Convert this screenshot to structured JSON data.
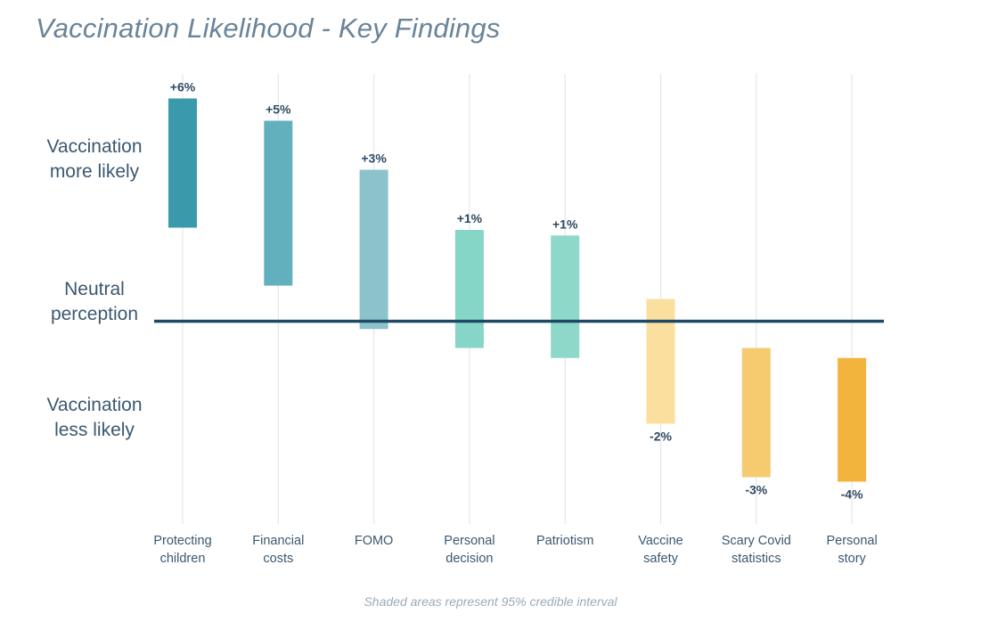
{
  "title": "Vaccination Likelihood - Key Findings",
  "y_region_labels": {
    "top": [
      "Vaccination",
      "more likely"
    ],
    "middle": [
      "Neutral",
      "perception"
    ],
    "bottom": [
      "Vaccination",
      "less likely"
    ]
  },
  "footnote": "Shaded areas represent 95% credible interval",
  "chart_data": {
    "type": "bar",
    "subtype": "floating-interval",
    "title": "Vaccination Likelihood - Key Findings",
    "categories": [
      [
        "Protecting",
        "children"
      ],
      [
        "Financial",
        "costs"
      ],
      [
        "FOMO"
      ],
      [
        "Personal",
        "decision"
      ],
      [
        "Patriotism"
      ],
      [
        "Vaccine",
        "safety"
      ],
      [
        "Scary Covid",
        "statistics"
      ],
      [
        "Personal",
        "story"
      ]
    ],
    "value_labels": [
      "+6%",
      "+5%",
      "+3%",
      "+1%",
      "+1%",
      "-2%",
      "-3%",
      "-4%"
    ],
    "intervals_pct": [
      [
        4.2,
        10.0
      ],
      [
        1.6,
        9.0
      ],
      [
        -0.35,
        6.8
      ],
      [
        -1.2,
        4.1
      ],
      [
        -1.65,
        3.85
      ],
      [
        -4.6,
        1.0
      ],
      [
        -7.0,
        -1.2
      ],
      [
        -7.2,
        -1.65
      ]
    ],
    "baseline": 0,
    "ylim": [
      -9.1,
      11.1
    ],
    "grid": "vertical lines per category",
    "colors": [
      "#3a9aac",
      "#62b0bd",
      "#8cc3cb",
      "#86d6c8",
      "#8dd8c9",
      "#fbdf9f",
      "#f6cb6f",
      "#f3b43e"
    ],
    "baseline_color": "#1f4a66",
    "gridline_color": "#e6e6e6"
  }
}
